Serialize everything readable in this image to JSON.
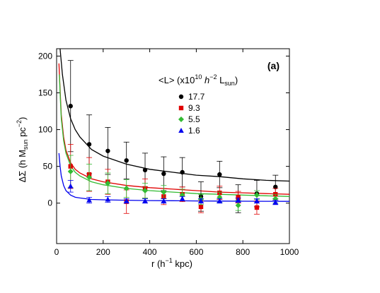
{
  "chart_data": {
    "type": "scatter",
    "panel_label": "(a)",
    "xlabel_main": "r (h",
    "xlabel_exp": "−1",
    "xlabel_tail": " kpc)",
    "ylabel": "ΔΣ (h M",
    "ylabel_sub": "sun",
    "ylabel_mid": " pc",
    "ylabel_exp": "−2",
    "ylabel_tail": ")",
    "xlim": [
      0,
      1000
    ],
    "ylim": [
      -55,
      210
    ],
    "xticks": [
      0,
      200,
      400,
      600,
      800,
      1000
    ],
    "yticks": [
      0,
      50,
      100,
      150,
      200
    ],
    "grid": false,
    "legend": {
      "placement": "top-right",
      "title_prefix": "<L> (x10",
      "title_exp": "10",
      "title_h": " h",
      "title_hexp": "−2",
      "title_L": " L",
      "title_sub": "sun",
      "title_suffix": ")"
    },
    "series": [
      {
        "name": "17.7",
        "marker": "circle",
        "color": "#000000",
        "x": [
          60,
          140,
          220,
          300,
          380,
          460,
          540,
          620,
          700,
          780,
          860,
          940
        ],
        "y": [
          132,
          80,
          71,
          58,
          45,
          40,
          42,
          9,
          39,
          6,
          13,
          22
        ],
        "err": [
          62,
          40,
          32,
          25,
          23,
          23,
          20,
          20,
          18,
          19,
          18,
          16
        ],
        "fit": [
          [
            15,
            213
          ],
          [
            25,
            175
          ],
          [
            40,
            140
          ],
          [
            60,
            115
          ],
          [
            80,
            100
          ],
          [
            100,
            90
          ],
          [
            150,
            73
          ],
          [
            200,
            64
          ],
          [
            300,
            53
          ],
          [
            400,
            46
          ],
          [
            500,
            42
          ],
          [
            600,
            38
          ],
          [
            700,
            36
          ],
          [
            800,
            33
          ],
          [
            900,
            31
          ],
          [
            1000,
            30
          ]
        ]
      },
      {
        "name": "9.3",
        "marker": "square",
        "color": "#e00000",
        "x": [
          60,
          140,
          220,
          300,
          380,
          460,
          540,
          620,
          700,
          780,
          860,
          940
        ],
        "y": [
          50,
          39,
          29,
          2,
          20,
          9,
          12,
          -5,
          14,
          8,
          -6,
          12
        ],
        "err": [
          30,
          23,
          17,
          16,
          13,
          11,
          10,
          8,
          9,
          8,
          9,
          8
        ],
        "fit": [
          [
            10,
            190
          ],
          [
            15,
            155
          ],
          [
            20,
            120
          ],
          [
            30,
            90
          ],
          [
            40,
            72
          ],
          [
            60,
            55
          ],
          [
            80,
            46
          ],
          [
            100,
            41
          ],
          [
            150,
            33
          ],
          [
            200,
            29
          ],
          [
            300,
            24
          ],
          [
            400,
            21
          ],
          [
            500,
            19
          ],
          [
            600,
            17
          ],
          [
            700,
            15
          ],
          [
            800,
            14
          ],
          [
            900,
            13
          ],
          [
            1000,
            12
          ]
        ]
      },
      {
        "name": "5.5",
        "marker": "diamond",
        "color": "#33bb33",
        "x": [
          60,
          140,
          220,
          300,
          380,
          460,
          540,
          620,
          700,
          780,
          860,
          940
        ],
        "y": [
          43,
          35,
          27,
          20,
          17,
          15,
          11,
          5,
          8,
          -3,
          11,
          6
        ],
        "err": [
          22,
          18,
          14,
          12,
          10,
          9,
          8,
          7,
          7,
          7,
          6,
          6
        ],
        "fit": [
          [
            12,
            175
          ],
          [
            15,
            150
          ],
          [
            20,
            115
          ],
          [
            30,
            85
          ],
          [
            40,
            68
          ],
          [
            60,
            51
          ],
          [
            80,
            42
          ],
          [
            100,
            37
          ],
          [
            150,
            29
          ],
          [
            200,
            25
          ],
          [
            300,
            20
          ],
          [
            400,
            17
          ],
          [
            500,
            15
          ],
          [
            600,
            13
          ],
          [
            700,
            12
          ],
          [
            800,
            11
          ],
          [
            900,
            10
          ],
          [
            1000,
            9
          ]
        ]
      },
      {
        "name": "1.6",
        "marker": "triangle",
        "color": "#0000ee",
        "x": [
          60,
          140,
          220,
          300,
          380,
          460,
          540,
          620,
          700,
          780,
          860,
          940
        ],
        "y": [
          23,
          4,
          5,
          3,
          3,
          3,
          6,
          3,
          3,
          4,
          3,
          1
        ],
        "err": [
          8,
          4,
          4,
          3,
          3,
          3,
          3,
          3,
          3,
          3,
          3,
          3
        ],
        "fit": [
          [
            10,
            68
          ],
          [
            15,
            50
          ],
          [
            20,
            37
          ],
          [
            30,
            24
          ],
          [
            40,
            17
          ],
          [
            60,
            11
          ],
          [
            80,
            8
          ],
          [
            100,
            7
          ],
          [
            150,
            5
          ],
          [
            200,
            4.5
          ],
          [
            300,
            4
          ],
          [
            400,
            3.5
          ],
          [
            500,
            3.3
          ],
          [
            600,
            3
          ],
          [
            700,
            2.8
          ],
          [
            800,
            2.6
          ],
          [
            900,
            2.5
          ],
          [
            1000,
            2.4
          ]
        ]
      }
    ]
  }
}
